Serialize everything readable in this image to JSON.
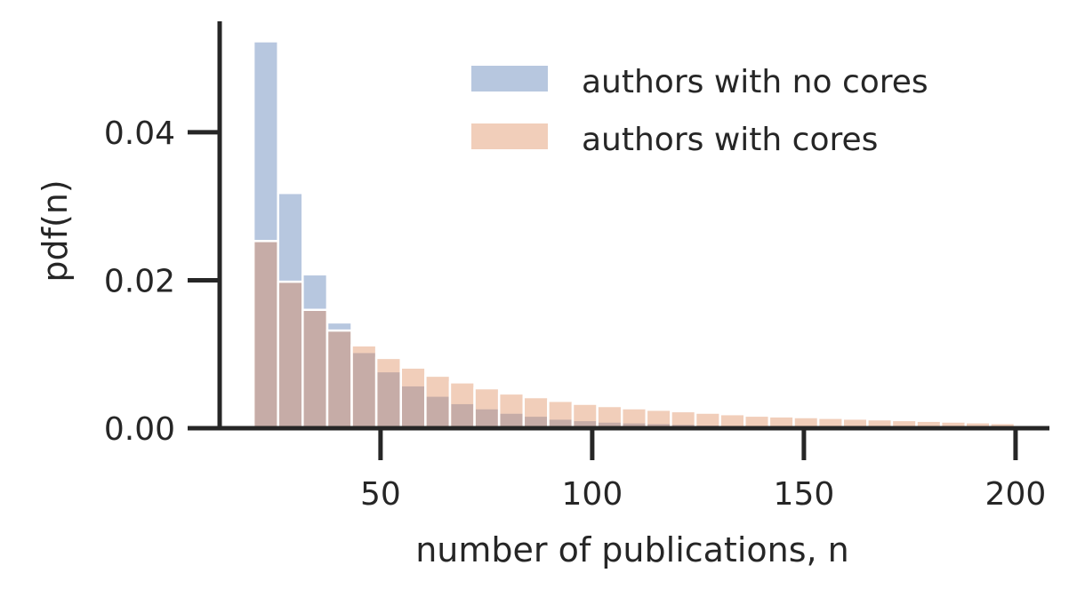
{
  "chart_data": {
    "type": "bar",
    "title": "",
    "xlabel": "number of publications, n",
    "ylabel": "pdf(n)",
    "xlim": [
      12,
      208
    ],
    "ylim": [
      0,
      0.055
    ],
    "xticks": [
      50,
      100,
      150,
      200
    ],
    "xtick_labels": [
      "50",
      "100",
      "150",
      "200"
    ],
    "yticks": [
      0,
      0.02,
      0.04
    ],
    "ytick_labels": [
      "0.00",
      "0.02",
      "0.04"
    ],
    "grid": false,
    "legend_position": "top-right",
    "bin_edges": [
      20,
      25.8,
      31.6,
      37.4,
      43.2,
      49,
      54.8,
      60.6,
      66.4,
      72.2,
      78,
      83.8,
      89.6,
      95.4,
      101.2,
      107,
      112.8,
      118.6,
      124.4,
      130.2,
      136,
      141.8,
      147.6,
      153.4,
      159.2,
      165,
      170.8,
      176.6,
      182.4,
      188.2,
      194,
      199.8
    ],
    "series": [
      {
        "name": "authors with no cores",
        "color": "#4c72b0",
        "values": [
          0.0523,
          0.0318,
          0.0208,
          0.0143,
          0.0103,
          0.0077,
          0.0058,
          0.0044,
          0.0034,
          0.0027,
          0.0021,
          0.0017,
          0.0013,
          0.0011,
          0.0009,
          0.0008,
          0.0007,
          0.0006,
          0.0005,
          0.0004,
          0.00035,
          0.0003,
          0.00025,
          0.0002,
          0.00018,
          0.00015,
          0.00013,
          0.00011,
          0.0001,
          8e-05,
          7e-05
        ]
      },
      {
        "name": "authors with cores",
        "color": "#dd8452",
        "values": [
          0.0253,
          0.0198,
          0.016,
          0.0132,
          0.0112,
          0.0095,
          0.0082,
          0.0071,
          0.0062,
          0.0054,
          0.0047,
          0.0042,
          0.0037,
          0.0033,
          0.003,
          0.0027,
          0.0025,
          0.0023,
          0.0021,
          0.0019,
          0.0017,
          0.0016,
          0.0015,
          0.0014,
          0.0013,
          0.0012,
          0.0011,
          0.001,
          0.0009,
          0.0008,
          0.0007
        ]
      }
    ]
  }
}
